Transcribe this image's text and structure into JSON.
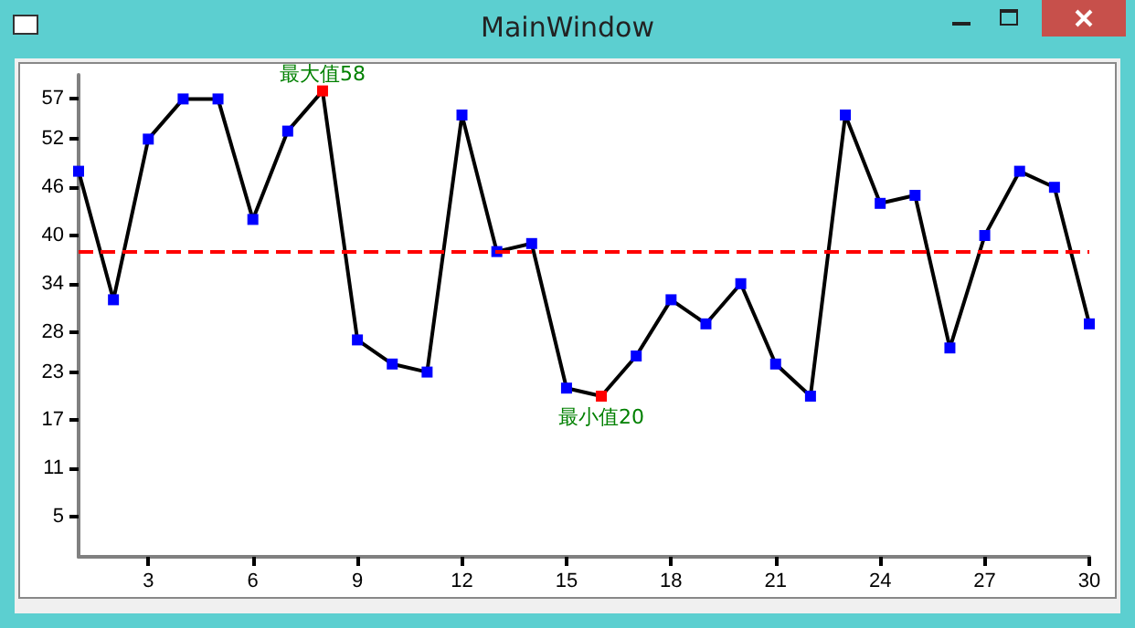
{
  "chart_data": {
    "type": "line",
    "title": "MainWindow",
    "x": [
      1,
      2,
      3,
      4,
      5,
      6,
      7,
      8,
      9,
      10,
      11,
      12,
      13,
      14,
      15,
      16,
      17,
      18,
      19,
      20,
      21,
      22,
      23,
      24,
      25,
      26,
      27,
      28,
      29,
      30
    ],
    "series": [
      {
        "color": "#000000",
        "colors": [
          "#0000ff",
          "#0000ff",
          "#0000ff",
          "#0000ff",
          "#0000ff",
          "#0000ff",
          "#0000ff",
          "#ff0000",
          "#0000ff",
          "#0000ff",
          "#0000ff",
          "#0000ff",
          "#0000ff",
          "#0000ff",
          "#0000ff",
          "#ff0000",
          "#0000ff",
          "#0000ff",
          "#0000ff",
          "#0000ff",
          "#0000ff",
          "#0000ff",
          "#0000ff",
          "#0000ff",
          "#0000ff",
          "#0000ff",
          "#0000ff",
          "#0000ff",
          "#0000ff",
          "#0000ff"
        ],
        "values": [
          48,
          32,
          52,
          57,
          57,
          42,
          53,
          58,
          27,
          24,
          23,
          55,
          38,
          39,
          21,
          20,
          25,
          32,
          29,
          34,
          24,
          20,
          55,
          44,
          45,
          26,
          40,
          48,
          46,
          29
        ]
      }
    ],
    "xlim": [
      1,
      30
    ],
    "xticks": [
      3,
      6,
      9,
      12,
      15,
      18,
      21,
      24,
      27,
      30
    ],
    "ylim": [
      0,
      60
    ],
    "yticks": [
      5,
      11,
      17,
      23,
      28,
      34,
      40,
      46,
      52,
      57
    ],
    "ref_lines": [
      {
        "axis": "y",
        "value": 38.1,
        "color": "#ff0000",
        "line_style": "dashed"
      }
    ],
    "annotations": [
      {
        "text": "最大值58",
        "x": 8,
        "y": 58
      },
      {
        "text": "最小值20",
        "x": 16,
        "y": 20
      }
    ],
    "marker": "square",
    "line_style": "solid",
    "grid": false
  }
}
